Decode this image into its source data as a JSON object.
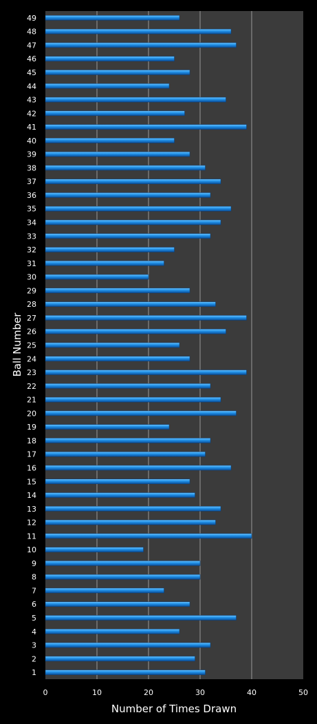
{
  "chart_data": {
    "type": "bar",
    "orientation": "horizontal",
    "xlabel": "Number of Times Drawn",
    "ylabel": "Ball Number",
    "xlim": [
      0,
      50
    ],
    "xticks": [
      0,
      10,
      20,
      30,
      40,
      50
    ],
    "grid": true,
    "legend": "none",
    "colors": {
      "bar": "#1f8fe6",
      "bar_light": "#6cc4ff",
      "bar_dark": "#0b4f9a",
      "plot_bg": "#3b3b3b",
      "grid": "#9a9a9a",
      "text": "#ffffff"
    },
    "categories": [
      "1",
      "2",
      "3",
      "4",
      "5",
      "6",
      "7",
      "8",
      "9",
      "10",
      "11",
      "12",
      "13",
      "14",
      "15",
      "16",
      "17",
      "18",
      "19",
      "20",
      "21",
      "22",
      "23",
      "24",
      "25",
      "26",
      "27",
      "28",
      "29",
      "30",
      "31",
      "32",
      "33",
      "34",
      "35",
      "36",
      "37",
      "38",
      "39",
      "40",
      "41",
      "42",
      "43",
      "44",
      "45",
      "46",
      "47",
      "48",
      "49"
    ],
    "values": [
      31,
      29,
      32,
      26,
      37,
      28,
      23,
      30,
      30,
      19,
      40,
      33,
      34,
      29,
      28,
      36,
      31,
      32,
      24,
      37,
      34,
      32,
      39,
      28,
      26,
      35,
      39,
      33,
      28,
      20,
      23,
      25,
      32,
      34,
      36,
      32,
      34,
      31,
      28,
      25,
      39,
      27,
      35,
      24,
      28,
      25,
      37,
      36,
      26
    ]
  }
}
